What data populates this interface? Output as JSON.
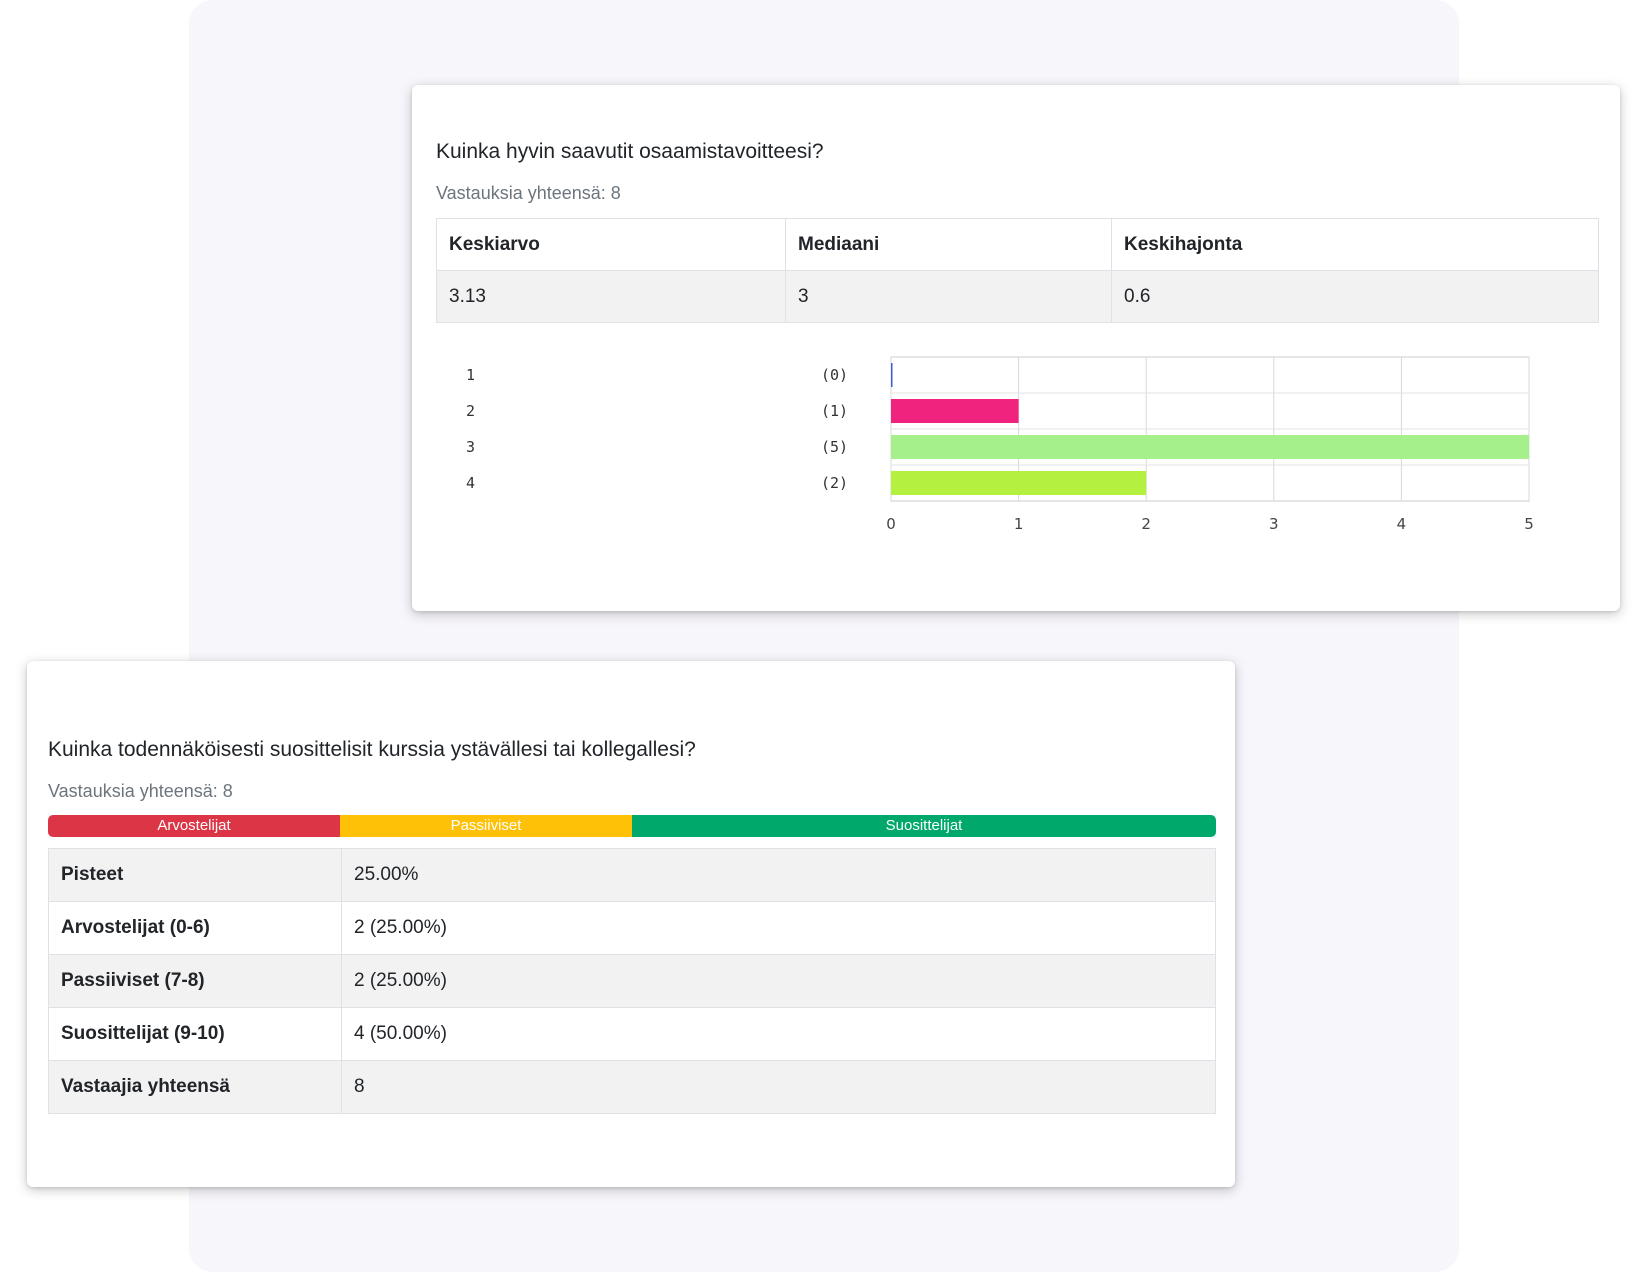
{
  "card1": {
    "title": "Kuinka hyvin saavutit osaamistavoitteesi?",
    "total": "Vastauksia yhteensä: 8",
    "stats_headers": [
      "Keskiarvo",
      "Mediaani",
      "Keskihajonta"
    ],
    "stats_values": [
      "3.13",
      "3",
      "0.6"
    ]
  },
  "chart_data": {
    "type": "bar",
    "orientation": "horizontal",
    "categories": [
      "1",
      "2",
      "3",
      "4"
    ],
    "count_labels": [
      "(0)",
      "(1)",
      "(5)",
      "(2)"
    ],
    "values": [
      0,
      1,
      5,
      2
    ],
    "colors": [
      "#3b5bdb",
      "#f0247e",
      "#a6f08c",
      "#b3f040"
    ],
    "xlim": [
      0,
      5
    ],
    "xticks": [
      "0",
      "1",
      "2",
      "3",
      "4",
      "5"
    ],
    "grid": true,
    "title": "",
    "xlabel": "",
    "ylabel": ""
  },
  "card2": {
    "title": "Kuinka todennäköisesti suosittelisit kurssia ystävällesi tai kollegallesi?",
    "total": "Vastauksia yhteensä: 8",
    "nps_bar": [
      {
        "label": "Arvostelijat",
        "share": 0.25,
        "color": "#dc3545"
      },
      {
        "label": "Passiiviset",
        "share": 0.25,
        "color": "#ffc107"
      },
      {
        "label": "Suosittelijat",
        "share": 0.5,
        "color": "#00a86b"
      }
    ],
    "rows": [
      {
        "label": "Pisteet",
        "value": "25.00%"
      },
      {
        "label": "Arvostelijat (0-6)",
        "value": "2 (25.00%)"
      },
      {
        "label": "Passiiviset (7-8)",
        "value": "2 (25.00%)"
      },
      {
        "label": "Suosittelijat (9-10)",
        "value": "4 (50.00%)"
      },
      {
        "label": "Vastaajia yhteensä",
        "value": "8"
      }
    ]
  }
}
